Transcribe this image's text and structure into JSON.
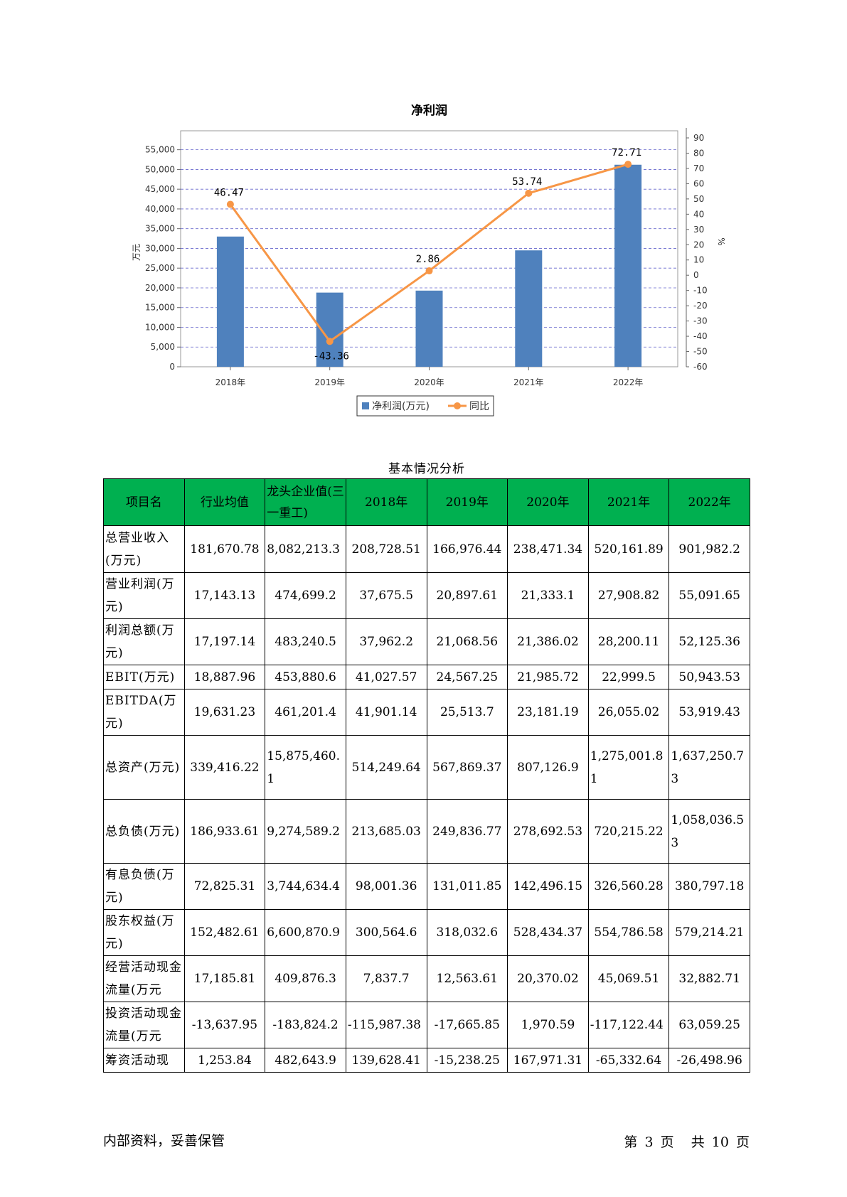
{
  "chart_data": {
    "type": "bar",
    "title": "净利润",
    "categories": [
      "2018年",
      "2019年",
      "2020年",
      "2021年",
      "2022年"
    ],
    "series": [
      {
        "name": "净利润(万元)",
        "type": "bar",
        "axis": "left",
        "color": "#4f81bd",
        "values": [
          33000,
          18800,
          19300,
          29500,
          51200
        ]
      },
      {
        "name": "同比",
        "type": "line",
        "axis": "right",
        "color": "#f79646",
        "values": [
          46.47,
          -43.36,
          2.86,
          53.74,
          72.71
        ],
        "labels": [
          "46.47",
          "-43.36",
          "2.86",
          "53.74",
          "72.71"
        ]
      }
    ],
    "ylabel": "万元",
    "ylabel_right": "%",
    "ylim": [
      0,
      58000
    ],
    "y2lim": [
      -60,
      90
    ],
    "yticks": [
      "0",
      "5,000",
      "10,000",
      "15,000",
      "20,000",
      "25,000",
      "30,000",
      "35,000",
      "40,000",
      "45,000",
      "50,000",
      "55,000"
    ],
    "y2ticks": [
      "-60",
      "-50",
      "-40",
      "-30",
      "-20",
      "-10",
      "0",
      "10",
      "20",
      "30",
      "40",
      "50",
      "60",
      "70",
      "80",
      "90"
    ],
    "grid": true,
    "legend": "bottom"
  },
  "table": {
    "caption": "基本情况分析",
    "headers": [
      "项目名",
      "行业均值",
      "龙头企业值(三一重工)",
      "2018年",
      "2019年",
      "2020年",
      "2021年",
      "2022年"
    ],
    "rows": [
      [
        "总营业收入(万元)",
        "181,670.78",
        "8,082,213.3",
        "208,728.51",
        "166,976.44",
        "238,471.34",
        "520,161.89",
        "901,982.2"
      ],
      [
        "营业利润(万元)",
        "17,143.13",
        "474,699.2",
        "37,675.5",
        "20,897.61",
        "21,333.1",
        "27,908.82",
        "55,091.65"
      ],
      [
        "利润总额(万元)",
        "17,197.14",
        "483,240.5",
        "37,962.2",
        "21,068.56",
        "21,386.02",
        "28,200.11",
        "52,125.36"
      ],
      [
        "EBIT(万元)",
        "18,887.96",
        "453,880.6",
        "41,027.57",
        "24,567.25",
        "21,985.72",
        "22,999.5",
        "50,943.53"
      ],
      [
        "EBITDA(万元)",
        "19,631.23",
        "461,201.4",
        "41,901.14",
        "25,513.7",
        "23,181.19",
        "26,055.02",
        "53,919.43"
      ],
      [
        "总资产(万元)",
        "339,416.22",
        "15,875,460.1",
        "514,249.64",
        "567,869.37",
        "807,126.9",
        "1,275,001.81",
        "1,637,250.73"
      ],
      [
        "总负债(万元)",
        "186,933.61",
        "9,274,589.2",
        "213,685.03",
        "249,836.77",
        "278,692.53",
        "720,215.22",
        "1,058,036.53"
      ],
      [
        "有息负债(万元)",
        "72,825.31",
        "3,744,634.4",
        "98,001.36",
        "131,011.85",
        "142,496.15",
        "326,560.28",
        "380,797.18"
      ],
      [
        "股东权益(万元)",
        "152,482.61",
        "6,600,870.9",
        "300,564.6",
        "318,032.6",
        "528,434.37",
        "554,786.58",
        "579,214.21"
      ],
      [
        "经营活动现金流量(万元",
        "17,185.81",
        "409,876.3",
        "7,837.7",
        "12,563.61",
        "20,370.02",
        "45,069.51",
        "32,882.71"
      ],
      [
        "投资活动现金流量(万元",
        "-13,637.95",
        "-183,824.2",
        "-115,987.38",
        "-17,665.85",
        "1,970.59",
        "-117,122.44",
        "63,059.25"
      ],
      [
        "筹资活动现",
        "1,253.84",
        "482,643.9",
        "139,628.41",
        "-15,238.25",
        "167,971.31",
        "-65,332.64",
        "-26,498.96"
      ]
    ]
  },
  "footer": {
    "left": "内部资料，妥善保管",
    "page_prefix": "第",
    "page_num": "3",
    "page_mid": "页",
    "total_prefix": "共",
    "total_num": "10",
    "total_suffix": "页"
  }
}
